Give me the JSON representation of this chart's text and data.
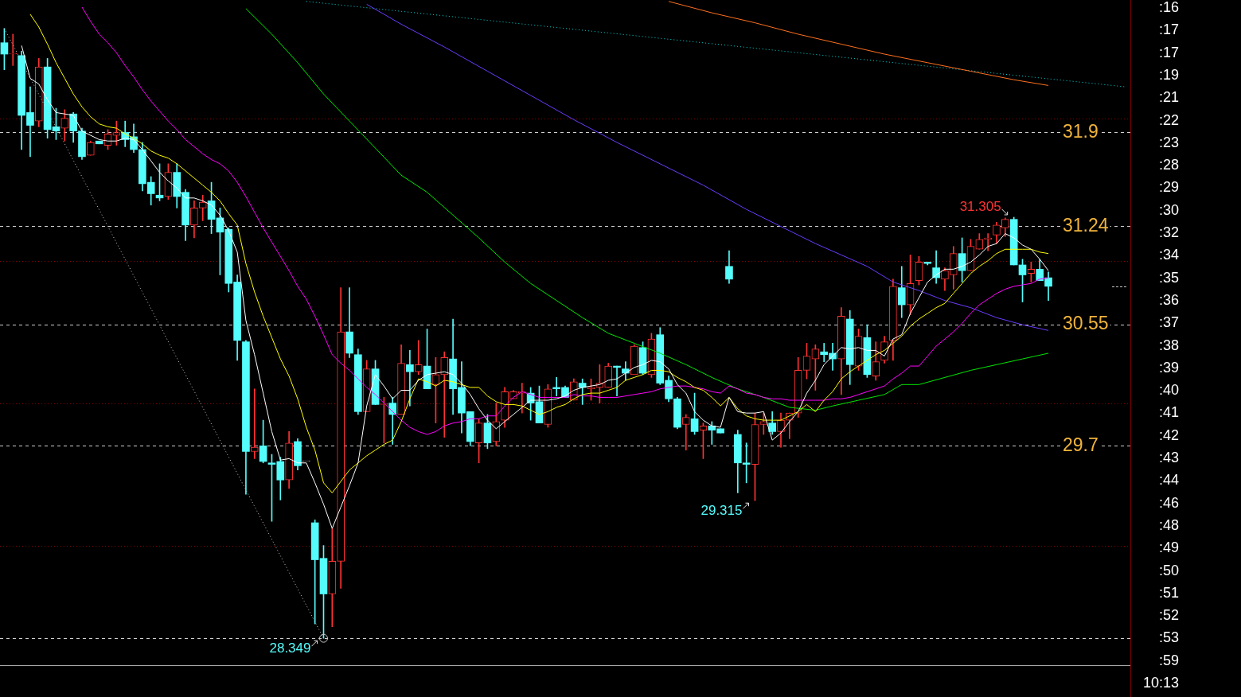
{
  "chart_data": {
    "type": "candlestick",
    "categories": [
      null,
      null,
      null,
      null,
      null,
      null,
      null,
      null,
      null,
      null,
      null,
      null,
      null,
      null,
      null,
      null,
      null,
      null,
      null,
      null,
      null,
      null,
      null,
      null,
      null,
      null,
      null,
      null,
      null,
      null,
      null,
      null,
      null,
      null,
      null,
      null,
      null,
      null,
      null,
      null,
      null,
      null,
      null,
      null,
      null,
      null,
      null,
      null,
      null,
      null,
      null,
      null,
      null,
      null,
      null,
      null,
      null,
      null,
      null,
      null,
      null,
      null,
      null,
      null,
      null,
      null,
      null,
      null,
      null,
      null,
      null,
      null,
      null,
      null,
      null,
      null,
      null,
      null,
      null,
      null,
      null,
      null,
      null,
      null,
      null,
      null,
      null,
      null,
      null,
      null,
      null,
      null,
      null,
      null,
      null,
      null,
      null,
      null,
      null,
      null,
      null,
      null,
      null,
      null,
      null,
      null,
      null,
      null,
      null,
      null,
      null,
      null,
      null,
      null,
      null,
      null,
      null,
      null,
      null,
      null,
      null,
      null,
      null,
      null,
      null,
      null,
      null,
      null,
      null,
      null,
      null
    ],
    "ylim": [
      28.16,
      32.83
    ],
    "yticks": [
      29.7,
      30.55,
      31.24,
      31.9
    ],
    "grid": "y",
    "tick_labels": "y",
    "series": [
      {
        "ohlc": [
          [
            32.53,
            32.63,
            32.34,
            32.45
          ],
          [
            32.45,
            32.59,
            32.37,
            32.45
          ],
          [
            32.44,
            32.47,
            31.78,
            32.02
          ],
          [
            32.04,
            32.22,
            31.73,
            31.95
          ],
          [
            31.98,
            32.42,
            31.94,
            32.36
          ],
          [
            32.36,
            32.42,
            31.86,
            31.92
          ],
          [
            31.94,
            32.07,
            31.85,
            31.91
          ],
          [
            31.93,
            32.06,
            31.84,
            32.0
          ],
          [
            32.03,
            32.04,
            31.83,
            31.91
          ],
          [
            31.91,
            31.93,
            31.71,
            31.73
          ],
          [
            31.74,
            31.84,
            31.74,
            31.83
          ],
          [
            31.84,
            31.84,
            31.82,
            31.82
          ],
          [
            31.81,
            31.92,
            31.78,
            31.89
          ],
          [
            31.88,
            31.98,
            31.81,
            31.9
          ],
          [
            31.9,
            31.98,
            31.8,
            31.85
          ],
          [
            31.87,
            31.96,
            31.76,
            31.78
          ],
          [
            31.78,
            31.83,
            31.49,
            31.54
          ],
          [
            31.55,
            31.59,
            31.39,
            31.47
          ],
          [
            31.46,
            31.68,
            31.42,
            31.44
          ],
          [
            31.45,
            31.68,
            31.43,
            31.62
          ],
          [
            31.62,
            31.68,
            31.37,
            31.45
          ],
          [
            31.48,
            31.5,
            31.14,
            31.25
          ],
          [
            31.25,
            31.42,
            31.16,
            31.37
          ],
          [
            31.37,
            31.46,
            31.28,
            31.41
          ],
          [
            31.42,
            31.55,
            31.19,
            31.29
          ],
          [
            31.3,
            31.37,
            30.9,
            31.2
          ],
          [
            31.22,
            31.23,
            30.78,
            30.84
          ],
          [
            30.85,
            30.9,
            30.3,
            30.44
          ],
          [
            30.43,
            30.44,
            29.36,
            29.66
          ],
          [
            29.66,
            30.1,
            29.61,
            29.69
          ],
          [
            29.7,
            29.88,
            29.58,
            29.59
          ],
          [
            29.58,
            29.64,
            29.17,
            29.57
          ],
          [
            29.59,
            29.62,
            29.32,
            29.46
          ],
          [
            29.46,
            29.8,
            29.4,
            29.72
          ],
          [
            29.73,
            29.75,
            29.53,
            29.56
          ],
          [
            29.59,
            29.59,
            29.59,
            29.59
          ],
          [
            29.16,
            29.18,
            28.45,
            28.9
          ],
          [
            28.91,
            29.0,
            28.349,
            28.66
          ],
          [
            28.66,
            29.12,
            28.43,
            28.89
          ],
          [
            28.89,
            30.81,
            28.7,
            30.5
          ],
          [
            30.5,
            30.81,
            30.32,
            30.35
          ],
          [
            30.34,
            30.38,
            29.92,
            29.94
          ],
          [
            29.94,
            30.3,
            29.94,
            30.24
          ],
          [
            30.24,
            30.3,
            29.99,
            29.99
          ],
          [
            29.99,
            30.04,
            29.72,
            29.99
          ],
          [
            30.0,
            30.04,
            29.71,
            29.92
          ],
          [
            29.92,
            30.41,
            29.92,
            30.28
          ],
          [
            30.27,
            30.37,
            29.98,
            30.22
          ],
          [
            30.22,
            30.44,
            30.2,
            30.27
          ],
          [
            30.26,
            30.52,
            30.1,
            30.1
          ],
          [
            30.13,
            30.32,
            29.86,
            30.2
          ],
          [
            30.2,
            30.36,
            29.76,
            30.32
          ],
          [
            30.31,
            30.59,
            29.92,
            30.1
          ],
          [
            30.11,
            30.29,
            29.79,
            29.93
          ],
          [
            29.94,
            29.94,
            29.7,
            29.73
          ],
          [
            29.72,
            29.89,
            29.58,
            29.86
          ],
          [
            29.86,
            29.92,
            29.68,
            29.72
          ],
          [
            29.73,
            30.0,
            29.7,
            29.87
          ],
          [
            29.88,
            30.11,
            29.83,
            30.08
          ],
          [
            30.03,
            30.09,
            30.03,
            30.08
          ],
          [
            30.07,
            30.14,
            29.93,
            30.08
          ],
          [
            30.07,
            30.11,
            29.88,
            30.0
          ],
          [
            30.01,
            30.12,
            29.86,
            29.86
          ],
          [
            29.85,
            30.13,
            29.83,
            30.1
          ],
          [
            30.11,
            30.18,
            30.05,
            30.1
          ],
          [
            30.11,
            30.12,
            30.04,
            30.04
          ],
          [
            30.02,
            30.17,
            30.02,
            30.15
          ],
          [
            30.14,
            30.17,
            29.99,
            30.11
          ],
          [
            30.1,
            30.17,
            30.02,
            30.11
          ],
          [
            30.11,
            30.27,
            30.0,
            30.14
          ],
          [
            30.11,
            30.28,
            30.11,
            30.26
          ],
          [
            30.26,
            30.26,
            30.05,
            30.25
          ],
          [
            30.24,
            30.29,
            30.16,
            30.21
          ],
          [
            30.2,
            30.41,
            30.2,
            30.4
          ],
          [
            30.39,
            30.43,
            30.2,
            30.21
          ],
          [
            30.2,
            30.49,
            30.18,
            30.45
          ],
          [
            30.48,
            30.53,
            30.13,
            30.14
          ],
          [
            30.16,
            30.19,
            30.01,
            30.03
          ],
          [
            30.03,
            30.04,
            29.82,
            29.83
          ],
          [
            29.85,
            29.92,
            29.67,
            29.9
          ],
          [
            29.89,
            30.07,
            29.78,
            29.8
          ],
          [
            29.81,
            29.86,
            29.61,
            29.84
          ],
          [
            29.84,
            29.87,
            29.71,
            29.81
          ],
          [
            29.82,
            29.82,
            29.79,
            29.79
          ],
          [
            30.96,
            31.07,
            30.84,
            30.87
          ],
          [
            29.78,
            29.81,
            29.37,
            29.58
          ],
          [
            29.58,
            29.72,
            29.44,
            29.57
          ],
          [
            29.57,
            29.93,
            29.315,
            29.85
          ],
          [
            29.85,
            29.93,
            29.78,
            29.87
          ],
          [
            29.86,
            29.94,
            29.78,
            29.8
          ],
          [
            29.8,
            29.93,
            29.69,
            29.88
          ],
          [
            29.88,
            29.93,
            29.75,
            29.93
          ],
          [
            29.93,
            30.32,
            29.9,
            30.23
          ],
          [
            30.23,
            30.42,
            30.17,
            30.33
          ],
          [
            30.31,
            30.41,
            30.09,
            30.38
          ],
          [
            30.36,
            30.42,
            30.29,
            30.34
          ],
          [
            30.35,
            30.42,
            30.23,
            30.31
          ],
          [
            30.31,
            30.67,
            30.06,
            30.61
          ],
          [
            30.59,
            30.65,
            30.13,
            30.27
          ],
          [
            30.26,
            30.52,
            30.23,
            30.47
          ],
          [
            30.46,
            30.55,
            30.18,
            30.2
          ],
          [
            30.19,
            30.43,
            30.16,
            30.29
          ],
          [
            30.3,
            30.47,
            30.28,
            30.43
          ],
          [
            30.44,
            30.87,
            30.3,
            30.82
          ],
          [
            30.81,
            30.96,
            30.6,
            30.69
          ],
          [
            30.69,
            31.04,
            30.62,
            30.84
          ],
          [
            30.86,
            31.03,
            30.83,
            30.99
          ],
          [
            30.99,
            30.99,
            30.97,
            30.98
          ],
          [
            30.95,
            31.07,
            30.84,
            30.88
          ],
          [
            30.87,
            30.95,
            30.79,
            30.93
          ],
          [
            30.9,
            31.1,
            30.8,
            31.05
          ],
          [
            31.05,
            31.16,
            30.85,
            30.93
          ],
          [
            30.93,
            31.15,
            30.93,
            31.1
          ],
          [
            31.08,
            31.19,
            31.08,
            31.15
          ],
          [
            31.15,
            31.19,
            31.07,
            31.16
          ],
          [
            31.18,
            31.27,
            31.12,
            31.25
          ],
          [
            31.23,
            31.3,
            31.17,
            31.29
          ],
          [
            31.29,
            31.305,
            30.97,
            30.97
          ],
          [
            30.97,
            31.01,
            30.71,
            30.9
          ],
          [
            30.91,
            30.99,
            30.85,
            30.94
          ],
          [
            30.94,
            31.01,
            30.86,
            30.86
          ],
          [
            30.88,
            30.92,
            30.72,
            30.82
          ],
          null,
          null,
          null,
          null,
          null,
          null,
          null,
          null,
          null
        ],
        "colors": [
          "#54fcfc",
          "#ff3232",
          "#54fcfc",
          "#54fcfc",
          "#ff3232",
          "#54fcfc",
          "#54fcfc",
          "#ff3232",
          "#54fcfc",
          "#54fcfc",
          "#ff3232",
          "#54fcfc",
          "#ff3232",
          "#ff3232",
          "#54fcfc",
          "#54fcfc",
          "#54fcfc",
          "#54fcfc",
          "#54fcfc",
          "#ff3232",
          "#54fcfc",
          "#54fcfc",
          "#ff3232",
          "#ff3232",
          "#54fcfc",
          "#54fcfc",
          "#54fcfc",
          "#54fcfc",
          "#54fcfc",
          "#ff3232",
          "#54fcfc",
          "#54fcfc",
          "#54fcfc",
          "#ff3232",
          "#54fcfc",
          "#c8c8c8",
          "#54fcfc",
          "#54fcfc",
          "#ff3232",
          "#ff3232",
          "#54fcfc",
          "#54fcfc",
          "#ff3232",
          "#54fcfc",
          "#ff3232",
          "#54fcfc",
          "#ff3232",
          "#54fcfc",
          "#ff3232",
          "#54fcfc",
          "#ff3232",
          "#ff3232",
          "#54fcfc",
          "#54fcfc",
          "#54fcfc",
          "#ff3232",
          "#54fcfc",
          "#ff3232",
          "#ff3232",
          "#ff3232",
          "#ff3232",
          "#54fcfc",
          "#54fcfc",
          "#ff3232",
          "#54fcfc",
          "#54fcfc",
          "#ff3232",
          "#54fcfc",
          "#ff3232",
          "#ff3232",
          "#ff3232",
          "#54fcfc",
          "#54fcfc",
          "#ff3232",
          "#54fcfc",
          "#ff3232",
          "#54fcfc",
          "#54fcfc",
          "#54fcfc",
          "#ff3232",
          "#54fcfc",
          "#ff3232",
          "#54fcfc",
          "#54fcfc",
          "#54fcfc",
          "#54fcfc",
          "#54fcfc",
          "#ff3232",
          "#ff3232",
          "#54fcfc",
          "#ff3232",
          "#ff3232",
          "#ff3232",
          "#ff3232",
          "#ff3232",
          "#54fcfc",
          "#54fcfc",
          "#ff3232",
          "#54fcfc",
          "#ff3232",
          "#54fcfc",
          "#ff3232",
          "#ff3232",
          "#ff3232",
          "#54fcfc",
          "#ff3232",
          "#ff3232",
          "#54fcfc",
          "#54fcfc",
          "#ff3232",
          "#ff3232",
          "#54fcfc",
          "#ff3232",
          "#ff3232",
          "#ff3232",
          "#ff3232",
          "#ff3232",
          "#54fcfc",
          "#54fcfc",
          "#ff3232",
          "#54fcfc",
          "#54fcfc",
          null,
          null,
          null,
          null,
          null,
          null,
          null,
          null,
          null
        ],
        "value_labels": [
          null,
          null,
          null,
          null,
          null,
          null,
          null,
          null,
          null,
          null,
          null,
          null,
          null,
          null,
          null,
          null,
          null,
          null,
          null,
          null,
          null,
          null,
          null,
          null,
          null,
          null,
          null,
          null,
          null,
          null,
          null,
          null,
          null,
          null,
          null,
          null,
          null,
          "28.349",
          null,
          null,
          null,
          null,
          null,
          null,
          null,
          null,
          null,
          null,
          null,
          null,
          null,
          null,
          null,
          null,
          null,
          null,
          null,
          null,
          null,
          null,
          null,
          null,
          null,
          null,
          null,
          null,
          null,
          null,
          null,
          null,
          null,
          null,
          null,
          null,
          null,
          null,
          null,
          null,
          null,
          null,
          null,
          null,
          null,
          null,
          null,
          null,
          null,
          "29.315",
          null,
          null,
          null,
          null,
          null,
          null,
          null,
          null,
          null,
          null,
          null,
          null,
          null,
          null,
          null,
          null,
          null,
          null,
          null,
          null,
          null,
          null,
          null,
          null,
          null,
          null,
          null,
          null,
          null,
          "31.305",
          null,
          null,
          null,
          null,
          null,
          null,
          null,
          null,
          null,
          null,
          null,
          null,
          null
        ]
      },
      {
        "type": "line",
        "color": "#ffffff",
        "values": [
          null,
          null,
          32.51,
          32.28,
          32.24,
          32.13,
          32.04,
          32.03,
          32.02,
          31.91,
          31.88,
          31.85,
          31.84,
          31.84,
          31.86,
          31.85,
          31.78,
          31.7,
          31.62,
          31.56,
          31.51,
          31.44,
          31.44,
          31.42,
          31.39,
          31.32,
          31.21,
          31.06,
          30.58,
          30.34,
          30.07,
          29.8,
          29.6,
          29.61,
          29.58,
          29.58,
          29.44,
          29.29,
          29.12,
          29.27,
          29.42,
          29.58,
          29.98,
          30.2,
          30.12,
          30.03,
          30.09,
          30.09,
          30.16,
          30.2,
          30.21,
          30.22,
          30.2,
          30.14,
          30.06,
          29.96,
          29.88,
          29.82,
          29.87,
          29.92,
          29.97,
          30.02,
          30.02,
          30.02,
          30.03,
          30.05,
          30.09,
          30.11,
          30.12,
          30.13,
          30.16,
          30.17,
          30.21,
          30.25,
          30.27,
          30.3,
          30.29,
          30.24,
          30.13,
          30.07,
          29.94,
          29.88,
          29.84,
          29.83,
          30.04,
          29.94,
          29.93,
          29.93,
          29.94,
          29.74,
          29.79,
          29.87,
          29.94,
          30.07,
          30.16,
          30.27,
          30.33,
          30.39,
          30.38,
          30.39,
          30.37,
          30.37,
          30.33,
          30.45,
          30.48,
          30.63,
          30.74,
          30.85,
          30.9,
          30.94,
          30.94,
          30.96,
          30.99,
          31.04,
          31.1,
          31.12,
          31.19,
          31.16,
          31.11,
          31.08,
          31.01,
          30.93,
          null,
          null,
          null,
          null,
          null,
          null,
          null,
          null,
          null
        ]
      },
      {
        "type": "line",
        "color": "#ffff00",
        "values": [
          null,
          null,
          null,
          32.73,
          32.64,
          32.52,
          32.39,
          32.28,
          32.17,
          32.08,
          32.01,
          31.96,
          31.94,
          31.93,
          31.89,
          31.86,
          31.82,
          31.77,
          31.74,
          31.72,
          31.68,
          31.63,
          31.58,
          31.53,
          31.48,
          31.42,
          31.33,
          31.25,
          30.98,
          30.78,
          30.61,
          30.46,
          30.31,
          30.19,
          30.03,
          29.83,
          29.67,
          29.44,
          29.37,
          29.45,
          29.53,
          29.58,
          29.63,
          29.67,
          29.71,
          29.74,
          29.87,
          30.03,
          30.17,
          30.15,
          30.12,
          30.16,
          30.15,
          30.13,
          30.11,
          30.11,
          30.05,
          30.01,
          29.99,
          29.99,
          29.98,
          29.95,
          29.92,
          29.94,
          29.97,
          29.99,
          30.03,
          30.06,
          30.07,
          30.07,
          30.09,
          30.11,
          30.16,
          30.18,
          30.2,
          30.23,
          30.23,
          30.22,
          30.18,
          30.15,
          30.11,
          30.09,
          30.04,
          29.98,
          30.04,
          29.96,
          29.91,
          29.89,
          29.88,
          29.88,
          29.88,
          29.91,
          29.94,
          29.99,
          29.94,
          30.02,
          30.08,
          30.17,
          30.22,
          30.26,
          30.3,
          30.34,
          30.37,
          30.42,
          30.47,
          30.54,
          30.59,
          30.63,
          30.67,
          30.7,
          30.77,
          30.84,
          30.91,
          30.96,
          31.0,
          31.05,
          31.08,
          31.08,
          31.08,
          31.08,
          31.06,
          31.05,
          null,
          null,
          null,
          null,
          null,
          null,
          null,
          null,
          null
        ]
      },
      {
        "type": "line",
        "color": "#ff00ff",
        "values": [
          null,
          null,
          null,
          null,
          null,
          null,
          null,
          null,
          null,
          32.78,
          32.68,
          32.59,
          32.53,
          32.46,
          32.37,
          32.29,
          32.2,
          32.12,
          32.05,
          31.98,
          31.92,
          31.85,
          31.8,
          31.75,
          31.71,
          31.68,
          31.63,
          31.55,
          31.45,
          31.34,
          31.23,
          31.13,
          31.03,
          30.93,
          30.82,
          30.73,
          30.61,
          30.48,
          30.34,
          30.28,
          30.23,
          30.17,
          30.11,
          30.06,
          30.0,
          29.94,
          29.88,
          29.83,
          29.8,
          29.78,
          29.8,
          29.84,
          29.86,
          29.87,
          29.89,
          29.89,
          29.91,
          29.91,
          29.98,
          30.04,
          30.08,
          30.06,
          30.04,
          30.04,
          30.04,
          30.04,
          30.06,
          30.05,
          30.05,
          30.04,
          30.04,
          30.04,
          30.05,
          30.06,
          30.07,
          30.08,
          30.1,
          30.11,
          30.12,
          30.12,
          30.11,
          30.1,
          30.08,
          30.07,
          30.12,
          30.1,
          30.07,
          30.06,
          30.04,
          30.03,
          30.03,
          30.02,
          30.02,
          30.02,
          30.02,
          30.02,
          30.03,
          30.03,
          30.04,
          30.06,
          30.08,
          30.1,
          30.12,
          30.17,
          30.21,
          30.26,
          30.26,
          30.33,
          30.4,
          30.45,
          30.5,
          30.56,
          30.63,
          30.69,
          30.73,
          30.77,
          30.8,
          30.82,
          30.83,
          30.84,
          30.87,
          30.88,
          null,
          null,
          null,
          null,
          null,
          null,
          null,
          null,
          null
        ]
      },
      {
        "type": "line",
        "color": "#00e600",
        "values": [
          null,
          null,
          null,
          null,
          null,
          null,
          null,
          null,
          null,
          null,
          null,
          null,
          null,
          null,
          null,
          null,
          null,
          null,
          null,
          null,
          null,
          null,
          null,
          null,
          null,
          null,
          null,
          null,
          32.77,
          null,
          null,
          32.59,
          null,
          null,
          32.39,
          null,
          null,
          32.17,
          null,
          null,
          31.98,
          null,
          null,
          31.79,
          null,
          null,
          31.6,
          null,
          null,
          31.48,
          null,
          null,
          31.32,
          null,
          null,
          31.16,
          null,
          null,
          30.99,
          null,
          null,
          30.84,
          null,
          null,
          30.72,
          null,
          null,
          30.6,
          null,
          null,
          30.49,
          null,
          null,
          30.42,
          null,
          null,
          30.35,
          null,
          null,
          30.27,
          null,
          null,
          30.18,
          null,
          null,
          30.1,
          null,
          null,
          30.04,
          null,
          null,
          29.97,
          null,
          null,
          29.95,
          null,
          29.98,
          null,
          null,
          30.02,
          null,
          null,
          30.06,
          null,
          30.13,
          null,
          30.13,
          null,
          null,
          30.18,
          null,
          null,
          30.23,
          null,
          null,
          30.27,
          null,
          null,
          30.31,
          null,
          null,
          30.35,
          null,
          null,
          null,
          null,
          null,
          null,
          null,
          null,
          null
        ]
      },
      {
        "type": "line",
        "color": "#6a3cff",
        "values": [
          null,
          null,
          null,
          null,
          null,
          null,
          null,
          null,
          null,
          null,
          null,
          null,
          null,
          null,
          null,
          null,
          null,
          null,
          null,
          null,
          null,
          null,
          null,
          null,
          null,
          null,
          null,
          null,
          null,
          null,
          null,
          null,
          null,
          null,
          null,
          null,
          null,
          null,
          null,
          null,
          null,
          null,
          32.8,
          null,
          null,
          null,
          32.66,
          null,
          null,
          null,
          null,
          32.5,
          null,
          null,
          null,
          null,
          32.33,
          null,
          null,
          null,
          null,
          32.16,
          null,
          null,
          null,
          null,
          31.99,
          null,
          null,
          null,
          null,
          31.83,
          null,
          null,
          null,
          null,
          31.68,
          null,
          null,
          null,
          null,
          31.53,
          null,
          null,
          null,
          null,
          31.36,
          null,
          null,
          null,
          null,
          31.21,
          null,
          null,
          31.12,
          null,
          null,
          31.04,
          null,
          null,
          30.96,
          null,
          null,
          30.85,
          null,
          null,
          30.79,
          null,
          null,
          30.72,
          null,
          null,
          30.67,
          null,
          null,
          30.6,
          null,
          null,
          30.55,
          null,
          null,
          30.51,
          null,
          null,
          null,
          null,
          null,
          null,
          null,
          null,
          null
        ]
      },
      {
        "type": "line",
        "color": "#ff7020",
        "values": [
          null,
          null,
          null,
          null,
          null,
          null,
          null,
          null,
          null,
          null,
          null,
          null,
          null,
          null,
          null,
          null,
          null,
          null,
          null,
          null,
          null,
          null,
          null,
          null,
          null,
          null,
          null,
          null,
          null,
          null,
          null,
          null,
          null,
          null,
          null,
          null,
          null,
          null,
          null,
          null,
          null,
          null,
          null,
          null,
          null,
          null,
          null,
          null,
          null,
          null,
          null,
          null,
          null,
          null,
          null,
          null,
          null,
          null,
          null,
          null,
          null,
          null,
          null,
          null,
          null,
          null,
          null,
          null,
          null,
          null,
          null,
          null,
          null,
          null,
          null,
          null,
          null,
          32.82,
          null,
          null,
          null,
          null,
          32.74,
          null,
          null,
          null,
          null,
          32.67,
          null,
          null,
          null,
          null,
          32.59,
          null,
          null,
          null,
          null,
          32.52,
          null,
          null,
          null,
          null,
          32.45,
          null,
          null,
          null,
          null,
          32.39,
          null,
          null,
          null,
          null,
          32.33,
          null,
          null,
          null,
          null,
          32.27,
          null,
          null,
          null,
          32.23,
          null,
          null,
          null,
          null,
          null,
          null,
          null,
          null,
          null
        ]
      },
      {
        "type": "line",
        "color": "#00dcdc",
        "line_style": "dotted",
        "values": [
          null,
          null,
          null,
          null,
          null,
          null,
          null,
          null,
          null,
          null,
          null,
          null,
          null,
          null,
          null,
          null,
          null,
          null,
          null,
          null,
          null,
          null,
          null,
          null,
          null,
          null,
          null,
          null,
          null,
          null,
          null,
          null,
          null,
          null,
          null,
          32.82,
          null,
          null,
          null,
          null,
          null,
          null,
          null,
          null,
          null,
          null,
          null,
          null,
          null,
          null,
          null,
          null,
          null,
          null,
          null,
          null,
          null,
          null,
          null,
          null,
          null,
          null,
          null,
          null,
          null,
          null,
          null,
          null,
          null,
          null,
          null,
          null,
          null,
          null,
          null,
          null,
          null,
          null,
          null,
          null,
          null,
          null,
          null,
          null,
          null,
          null,
          null,
          null,
          null,
          null,
          null,
          null,
          null,
          null,
          null,
          null,
          null,
          null,
          null,
          null,
          null,
          null,
          null,
          null,
          null,
          null,
          null,
          null,
          null,
          null,
          null,
          null,
          null,
          null,
          null,
          null,
          null,
          null,
          null,
          null,
          null,
          null,
          null,
          null,
          null,
          null,
          null,
          null,
          null,
          null,
          32.22
        ]
      },
      {
        "type": "line",
        "color": "#c8c8c8",
        "line_style": "dotted",
        "marker": "circle",
        "values": [
          32.63,
          null,
          null,
          null,
          null,
          null,
          null,
          null,
          null,
          null,
          null,
          null,
          null,
          null,
          null,
          null,
          null,
          null,
          null,
          null,
          null,
          null,
          null,
          null,
          null,
          null,
          null,
          null,
          null,
          null,
          null,
          null,
          null,
          null,
          null,
          null,
          null,
          28.349,
          null,
          null,
          null,
          null,
          null,
          null,
          null,
          null,
          null,
          null,
          null,
          null,
          null,
          null,
          null,
          null,
          null,
          null,
          null,
          null,
          null,
          null,
          null,
          null,
          null,
          null,
          null,
          null,
          null,
          null,
          null,
          null,
          null,
          null,
          null,
          null,
          null,
          null,
          null,
          null,
          null,
          null,
          null,
          null,
          null,
          null,
          null,
          null,
          null,
          null,
          null,
          null,
          null,
          null,
          null,
          null,
          null,
          null,
          null,
          null,
          null,
          null,
          null,
          null,
          null,
          null,
          null,
          null,
          null,
          null,
          null,
          null,
          null,
          null,
          null,
          null,
          null,
          null,
          null,
          null,
          null,
          null,
          null,
          null,
          null,
          null,
          null,
          null,
          null,
          null,
          null,
          null,
          null
        ]
      }
    ],
    "ref_lines": [
      {
        "axis": "y",
        "value": 28.349,
        "color": "#d0d0d0",
        "line_style": "dashed"
      },
      {
        "axis": "y",
        "value": 32,
        "color": "#8b0000",
        "line_style": "dotted"
      },
      {
        "axis": "y",
        "value": 31,
        "color": "#8b0000",
        "line_style": "dotted"
      },
      {
        "axis": "y",
        "value": 30,
        "color": "#8b0000",
        "line_style": "dotted"
      },
      {
        "axis": "y",
        "value": 29,
        "color": "#8b0000",
        "line_style": "dotted"
      }
    ],
    "annotations": [
      ":16",
      ":17",
      ":17",
      ":19",
      ":21",
      ":22",
      ":23",
      ":28",
      ":29",
      ":30",
      ":32",
      ":34",
      ":35",
      ":36",
      ":37",
      ":38",
      ":39",
      ":40",
      ":41",
      ":42",
      ":43",
      ":44",
      ":46",
      ":48",
      ":49",
      ":50",
      ":51",
      ":52",
      ":53",
      ":59",
      "10:13"
    ]
  }
}
